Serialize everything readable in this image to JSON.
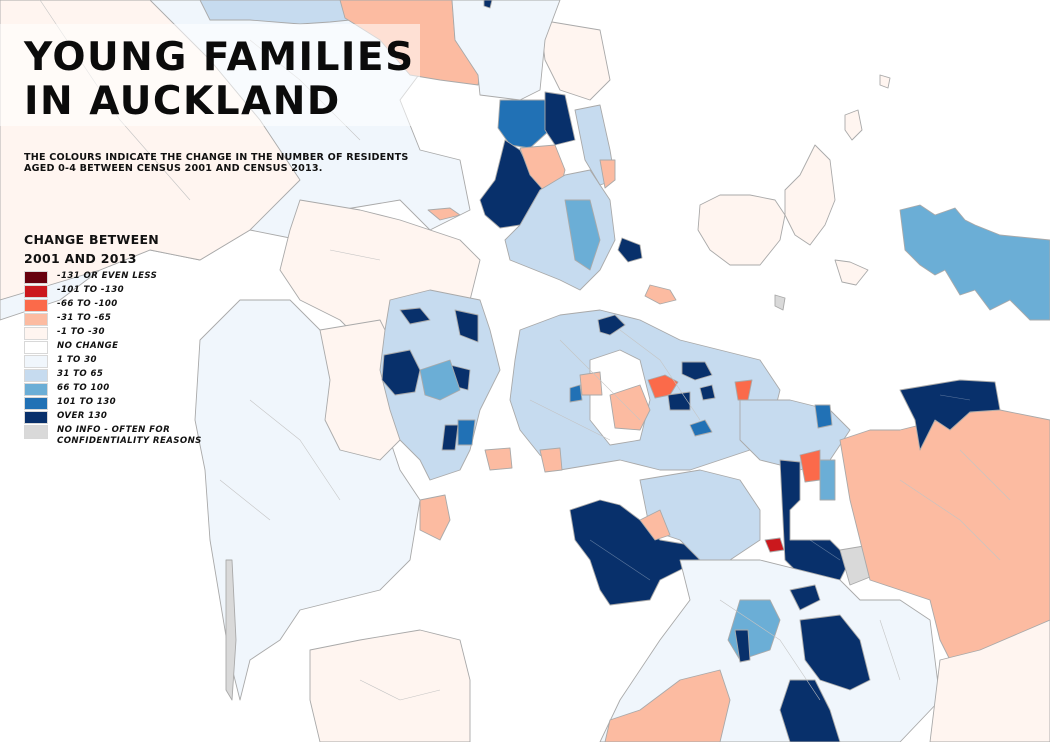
{
  "title": {
    "line1": "YOUNG FAMILIES",
    "line2": "IN AUCKLAND"
  },
  "subtitle": "THE COLOURS INDICATE THE CHANGE IN THE NUMBER OF RESIDENTS AGED 0-4 BETWEEN CENSUS 2001 AND CENSUS 2013.",
  "legend": {
    "title_line1": "CHANGE BETWEEN",
    "title_line2": "2001 AND 2013",
    "items": [
      {
        "label": "-131 OR EVEN LESS",
        "color": "#67000d"
      },
      {
        "label": "-101 TO -130",
        "color": "#cb181d"
      },
      {
        "label": "-66 TO -100",
        "color": "#fb6a4a"
      },
      {
        "label": "-31 TO -65",
        "color": "#fcbba1"
      },
      {
        "label": "-1 TO -30",
        "color": "#fff5f0"
      },
      {
        "label": "NO CHANGE",
        "color": "#ffffff"
      },
      {
        "label": "1 TO 30",
        "color": "#f0f6fc"
      },
      {
        "label": "31 TO 65",
        "color": "#c6dbef"
      },
      {
        "label": "66 TO 100",
        "color": "#6baed6"
      },
      {
        "label": "101 TO 130",
        "color": "#2171b5"
      },
      {
        "label": "OVER 130",
        "color": "#08306b"
      },
      {
        "label": "NO INFO - OFTEN FOR\nCONFIDENTIALITY REASONS",
        "color": "#d9d9d9"
      }
    ]
  },
  "map": {
    "region": "Auckland",
    "measure": "Change in residents aged 0-4, Census 2001 to Census 2013",
    "background_color": "#ffffff",
    "boundary_color": "#a9a9a9"
  }
}
